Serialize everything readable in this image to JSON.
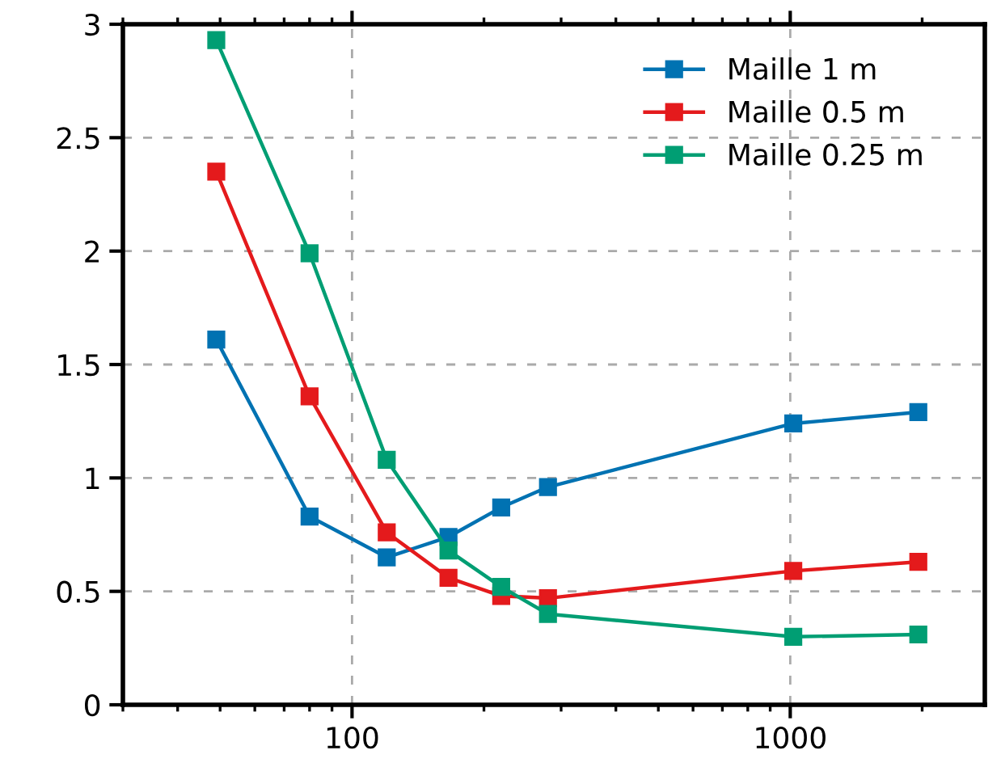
{
  "chart_data": {
    "type": "line",
    "x": [
      49,
      80,
      120,
      166,
      219,
      280,
      1016,
      1960
    ],
    "series": [
      {
        "name": "Maille 1 m",
        "color": "#0072b2",
        "values": [
          1.61,
          0.83,
          0.65,
          0.74,
          0.87,
          0.96,
          1.24,
          1.29
        ]
      },
      {
        "name": "Maille 0.5 m",
        "color": "#e41a1c",
        "values": [
          2.35,
          1.36,
          0.76,
          0.56,
          0.48,
          0.47,
          0.59,
          0.63
        ]
      },
      {
        "name": "Maille 0.25 m",
        "color": "#009e73",
        "values": [
          2.93,
          1.99,
          1.08,
          0.68,
          0.52,
          0.4,
          0.3,
          0.31
        ]
      }
    ],
    "log": "x",
    "xlim": [
      30,
      2780
    ],
    "xticks": [
      100,
      1000
    ],
    "ylim": [
      0,
      3
    ],
    "yticks": [
      0,
      0.5,
      1,
      1.5,
      2,
      2.5,
      3
    ],
    "grid": true,
    "legend": "top right",
    "marker": "square",
    "line_style": "solid"
  }
}
